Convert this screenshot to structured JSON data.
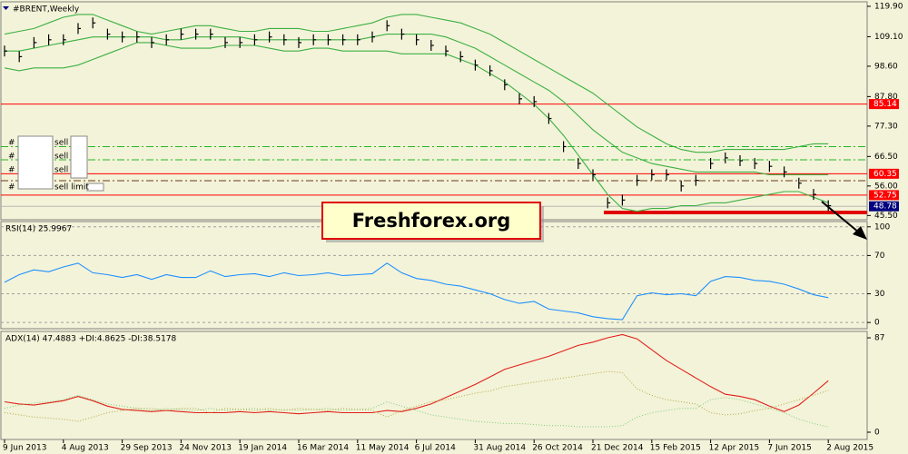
{
  "chart_data": [
    {
      "type": "bars",
      "title": "#BRENT,Weekly",
      "color": "#000000",
      "ylim": [
        44,
        121.5
      ],
      "yticks": [
        {
          "value": 45.5,
          "label": "45.50"
        },
        {
          "value": 56,
          "label": "56.00"
        },
        {
          "value": 66.5,
          "label": "66.50"
        },
        {
          "value": 77.3,
          "label": "77.30"
        },
        {
          "value": 87.8,
          "label": "87.80"
        },
        {
          "value": 98.6,
          "label": "98.60"
        },
        {
          "value": 109.1,
          "label": "109.10"
        },
        {
          "value": 119.9,
          "label": "119.90"
        }
      ],
      "values": [
        104,
        102,
        107,
        108,
        108,
        112,
        114,
        110,
        109,
        109,
        107,
        108,
        110,
        110,
        110,
        107,
        107,
        108,
        109,
        108,
        107,
        108,
        108,
        108,
        108,
        109,
        113,
        110,
        108,
        106,
        104,
        102,
        99,
        97,
        92,
        87,
        86,
        80,
        70,
        64,
        60,
        50,
        51,
        58,
        60,
        60,
        56,
        58,
        64,
        66,
        65,
        64,
        63,
        61,
        57,
        53,
        49
      ],
      "series": [
        {
          "color": "#3cb043",
          "style": "solid",
          "values": [
            110,
            111,
            112,
            114,
            116,
            117,
            117,
            115,
            113,
            111,
            110,
            111,
            112,
            113,
            113,
            112,
            111,
            111,
            112,
            112,
            112,
            111,
            111,
            112,
            113,
            114,
            116,
            117,
            117,
            116,
            115,
            114,
            112,
            110,
            107,
            104,
            101,
            98,
            95,
            92,
            89,
            85,
            81,
            77,
            74,
            71,
            69,
            68,
            68,
            69,
            69,
            69,
            69,
            69,
            70,
            71,
            71
          ]
        },
        {
          "color": "#3cb043",
          "style": "solid",
          "values": [
            104,
            104,
            105,
            106,
            107,
            108,
            109,
            109,
            109,
            109,
            109,
            108,
            108,
            109,
            109,
            109,
            109,
            108,
            108,
            108,
            108,
            108,
            108,
            108,
            108,
            109,
            110,
            110,
            110,
            110,
            109,
            107,
            105,
            102,
            99,
            96,
            93,
            90,
            86,
            81,
            76,
            72,
            68,
            66,
            64,
            63,
            62,
            61,
            61,
            61,
            61,
            61,
            60,
            60,
            60,
            60,
            60
          ]
        },
        {
          "color": "#3cb043",
          "style": "solid",
          "values": [
            98,
            97,
            98,
            98,
            98,
            99,
            101,
            103,
            105,
            107,
            107,
            106,
            105,
            105,
            105,
            106,
            106,
            106,
            105,
            104,
            104,
            105,
            105,
            104,
            104,
            104,
            104,
            103,
            103,
            103,
            103,
            101,
            99,
            96,
            93,
            89,
            85,
            80,
            74,
            67,
            60,
            53,
            48,
            47,
            48,
            48,
            49,
            49,
            50,
            50,
            51,
            52,
            53,
            54,
            54,
            52,
            50
          ]
        }
      ],
      "levels": [
        {
          "value": 85.14,
          "color": "#ff0000",
          "style": "solid",
          "label_color": "#ff0000"
        },
        {
          "value": 70,
          "color": "#22b822",
          "style": "dashdot"
        },
        {
          "value": 65.3,
          "color": "#22b822",
          "style": "dashdot"
        },
        {
          "value": 60.35,
          "color": "#ff0000",
          "style": "solid",
          "label_color": "#ff0000"
        },
        {
          "value": 57.9,
          "color": "#6b3a1a",
          "style": "dashdot"
        },
        {
          "value": 52.75,
          "color": "#ff0000",
          "style": "solid",
          "label_color": "#ff0000"
        },
        {
          "value": 48.78,
          "color": "#b8b8b8",
          "style": "solid",
          "label_color": "#000080"
        },
        {
          "value": 46.6,
          "color": "#e00000",
          "style": "thick"
        }
      ],
      "order_panel": [
        {
          "mark": "#",
          "side": "sell"
        },
        {
          "mark": "#",
          "side": "sell"
        },
        {
          "mark": "#",
          "side": "sell"
        },
        {
          "mark": "#",
          "side": "sell limit"
        }
      ],
      "watermark": "Freshforex.org"
    },
    {
      "type": "line",
      "title": "RSI(14) 25.9967",
      "grid": true,
      "ylim": [
        -6.5,
        105.5
      ],
      "yticks": [
        0,
        30,
        70,
        100
      ],
      "series": [
        {
          "color": "#1e90ff",
          "style": "solid",
          "values": [
            42,
            50,
            55,
            53,
            58,
            62,
            52,
            50,
            47,
            50,
            45,
            50,
            47,
            47,
            54,
            48,
            50,
            51,
            48,
            52,
            49,
            50,
            52,
            49,
            50,
            51,
            62,
            52,
            46,
            44,
            40,
            38,
            34,
            30,
            24,
            20,
            22,
            14,
            12,
            10,
            6,
            4,
            3,
            28,
            31,
            29,
            30,
            28,
            43,
            48,
            47,
            44,
            43,
            40,
            35,
            29,
            25.9967
          ]
        }
      ]
    },
    {
      "type": "line",
      "title": "ADX(14) 47.4883 +DI:4.8625 -DI:38.5178",
      "ylim": [
        -6.7,
        92.9
      ],
      "yticks": [
        0,
        87
      ],
      "categories": [
        "9 Jun 2013",
        null,
        null,
        null,
        "4 Aug 2013",
        null,
        null,
        null,
        "29 Sep 2013",
        null,
        null,
        null,
        "24 Nov 2013",
        null,
        null,
        null,
        "19 Jan 2014",
        null,
        null,
        null,
        "16 Mar 2014",
        null,
        null,
        null,
        "11 May 2014",
        null,
        null,
        null,
        "6 Jul 2014",
        null,
        null,
        null,
        "31 Aug 2014",
        null,
        null,
        null,
        "26 Oct 2014",
        null,
        null,
        null,
        "21 Dec 2014",
        null,
        null,
        null,
        "15 Feb 2015",
        null,
        null,
        null,
        "12 Apr 2015",
        null,
        null,
        null,
        "7 Jun 2015",
        null,
        null,
        null,
        "2 Aug 2015"
      ],
      "series": [
        {
          "color": "#e0201a",
          "style": "solid",
          "values": [
            28,
            26,
            25,
            27,
            29,
            33,
            29,
            24,
            21,
            20,
            19,
            20,
            19,
            18,
            18,
            18,
            19,
            18,
            19,
            18,
            17,
            18,
            19,
            18,
            18,
            18,
            20,
            19,
            22,
            26,
            32,
            38,
            44,
            51,
            58,
            62,
            66,
            70,
            75,
            80,
            83,
            87,
            90,
            86,
            76,
            66,
            58,
            50,
            42,
            35,
            33,
            30,
            24,
            19,
            25,
            36,
            47.4883
          ]
        },
        {
          "color": "#7ccd7c",
          "style": "dotted",
          "values": [
            22,
            25,
            27,
            28,
            30,
            34,
            30,
            26,
            24,
            22,
            20,
            22,
            21,
            20,
            22,
            20,
            21,
            22,
            20,
            21,
            20,
            21,
            22,
            20,
            21,
            22,
            28,
            24,
            20,
            16,
            14,
            12,
            10,
            9,
            8,
            8,
            7,
            6,
            6,
            5,
            5,
            5,
            6,
            14,
            18,
            20,
            22,
            22,
            30,
            32,
            30,
            26,
            22,
            18,
            12,
            8,
            4.8625
          ]
        },
        {
          "color": "#b5a642",
          "style": "dotted",
          "values": [
            18,
            16,
            14,
            13,
            12,
            10,
            14,
            18,
            20,
            22,
            22,
            20,
            22,
            22,
            18,
            22,
            21,
            20,
            22,
            20,
            22,
            21,
            20,
            22,
            21,
            20,
            14,
            20,
            24,
            28,
            30,
            33,
            36,
            38,
            42,
            44,
            46,
            48,
            50,
            52,
            54,
            56,
            55,
            40,
            34,
            30,
            28,
            26,
            18,
            16,
            17,
            20,
            22,
            26,
            30,
            34,
            38.5178
          ]
        }
      ]
    }
  ]
}
